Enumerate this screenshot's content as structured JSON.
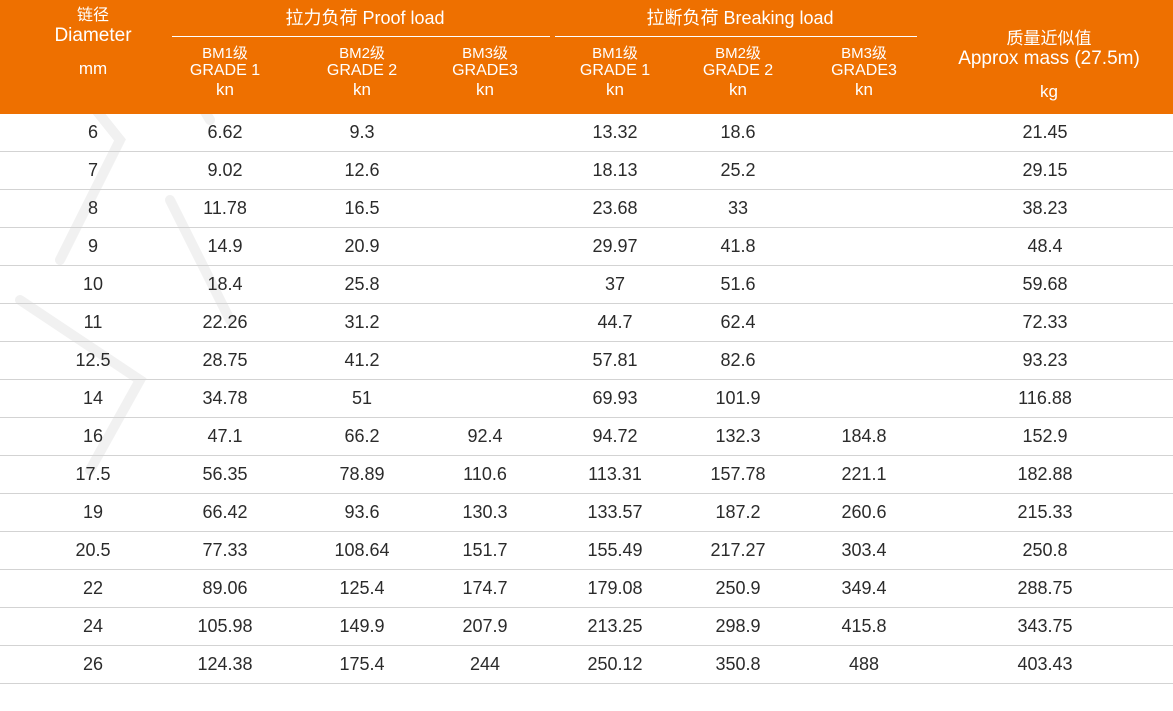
{
  "colors": {
    "header_bg": "#ee7000",
    "header_text": "#ffffff",
    "row_divider": "#d3d3d3"
  },
  "header": {
    "diameter": {
      "cn": "链径",
      "en": "Diameter",
      "unit": "mm"
    },
    "proof_load_title": "拉力负荷 Proof load",
    "breaking_load_title": "拉断负荷 Breaking load",
    "mass": {
      "cn": "质量近似值",
      "en": "Approx mass (27.5m)",
      "unit": "kg"
    },
    "grades": [
      {
        "cn": "BM1级",
        "en": "GRADE 1",
        "unit": "kn"
      },
      {
        "cn": "BM2级",
        "en": "GRADE 2",
        "unit": "kn"
      },
      {
        "cn": "BM3级",
        "en": "GRADE3",
        "unit": "kn"
      },
      {
        "cn": "BM1级",
        "en": "GRADE 1",
        "unit": "kn"
      },
      {
        "cn": "BM2级",
        "en": "GRADE 2",
        "unit": "kn"
      },
      {
        "cn": "BM3级",
        "en": "GRADE3",
        "unit": "kn"
      }
    ]
  },
  "rows": [
    [
      "6",
      "6.62",
      "9.3",
      "",
      "13.32",
      "18.6",
      "",
      "21.45"
    ],
    [
      "7",
      "9.02",
      "12.6",
      "",
      "18.13",
      "25.2",
      "",
      "29.15"
    ],
    [
      "8",
      "11.78",
      "16.5",
      "",
      "23.68",
      "33",
      "",
      "38.23"
    ],
    [
      "9",
      "14.9",
      "20.9",
      "",
      "29.97",
      "41.8",
      "",
      "48.4"
    ],
    [
      "10",
      "18.4",
      "25.8",
      "",
      "37",
      "51.6",
      "",
      "59.68"
    ],
    [
      "11",
      "22.26",
      "31.2",
      "",
      "44.7",
      "62.4",
      "",
      "72.33"
    ],
    [
      "12.5",
      "28.75",
      "41.2",
      "",
      "57.81",
      "82.6",
      "",
      "93.23"
    ],
    [
      "14",
      "34.78",
      "51",
      "",
      "69.93",
      "101.9",
      "",
      "116.88"
    ],
    [
      "16",
      "47.1",
      "66.2",
      "92.4",
      "94.72",
      "132.3",
      "184.8",
      "152.9"
    ],
    [
      "17.5",
      "56.35",
      "78.89",
      "110.6",
      "113.31",
      "157.78",
      "221.1",
      "182.88"
    ],
    [
      "19",
      "66.42",
      "93.6",
      "130.3",
      "133.57",
      "187.2",
      "260.6",
      "215.33"
    ],
    [
      "20.5",
      "77.33",
      "108.64",
      "151.7",
      "155.49",
      "217.27",
      "303.4",
      "250.8"
    ],
    [
      "22",
      "89.06",
      "125.4",
      "174.7",
      "179.08",
      "250.9",
      "349.4",
      "288.75"
    ],
    [
      "24",
      "105.98",
      "149.9",
      "207.9",
      "213.25",
      "298.9",
      "415.8",
      "343.75"
    ],
    [
      "26",
      "124.38",
      "175.4",
      "244",
      "250.12",
      "350.8",
      "488",
      "403.43"
    ]
  ]
}
